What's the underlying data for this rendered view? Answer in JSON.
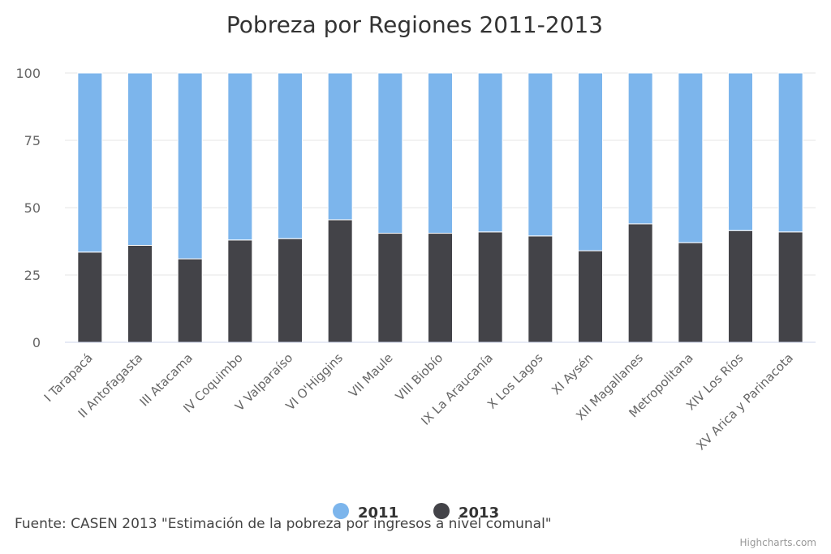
{
  "chart_data": {
    "type": "bar",
    "stacked": true,
    "percent": true,
    "title": "Pobreza por Regiones 2011-2013",
    "categories": [
      "I Tarapacá",
      "II Antofagasta",
      "III Atacama",
      "IV Coquimbo",
      "V Valparaíso",
      "VI O'Higgins",
      "VII Maule",
      "VIII Biobío",
      "IX La Araucanía",
      "X Los Lagos",
      "XI Aysén",
      "XII Magallanes",
      "Metropolitana",
      "XIV Los Ríos",
      "XV Arica y Parinacota"
    ],
    "series": [
      {
        "name": "2011",
        "color": "#7cb5ec",
        "values": [
          66.5,
          64,
          69,
          62,
          61.5,
          54.5,
          59.5,
          59.5,
          59,
          60.5,
          66,
          56,
          63,
          58.5,
          59
        ]
      },
      {
        "name": "2013",
        "color": "#434348",
        "values": [
          33.5,
          36,
          31,
          38,
          38.5,
          45.5,
          40.5,
          40.5,
          41,
          39.5,
          34,
          44,
          37,
          41.5,
          41
        ]
      }
    ],
    "ylim": [
      0,
      100
    ],
    "yticks": [
      0,
      25,
      50,
      75,
      100
    ],
    "legend": "bottom-center",
    "grid": true
  },
  "source": "Fuente: CASEN 2013 \"Estimación de la pobreza por ingresos a nivel comunal\"",
  "credit": "Highcharts.com"
}
